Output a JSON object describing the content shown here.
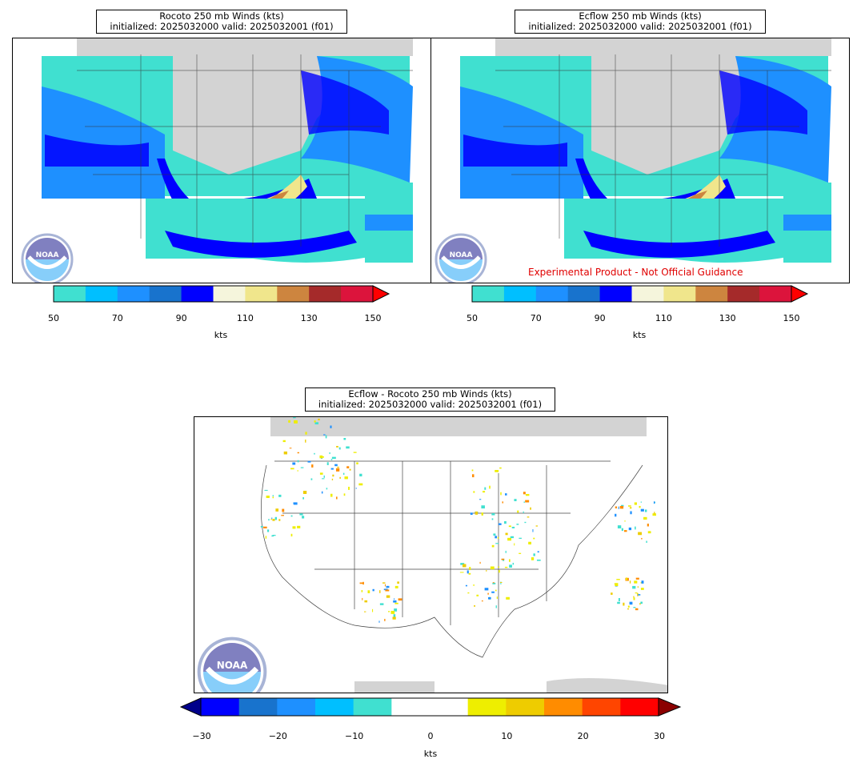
{
  "panels": [
    {
      "id": "rocoto",
      "title_line1": "Rocoto 250 mb Winds (kts)",
      "title_line2": "initialized: 2025032000 valid: 2025032001 (f01)"
    },
    {
      "id": "ecflow",
      "title_line1": "Ecflow 250 mb Winds (kts)",
      "title_line2": "initialized: 2025032000 valid: 2025032001 (f01)",
      "watermark": "Experimental Product - Not Official Guidance"
    },
    {
      "id": "diff",
      "title_line1": "Ecflow - Rocoto 250 mb Winds (kts)",
      "title_line2": "initialized: 2025032000 valid: 2025032001 (f01)"
    }
  ],
  "wind_colorbar": {
    "units": "kts",
    "ticks": [
      "50",
      "70",
      "90",
      "110",
      "130",
      "150"
    ],
    "colors": [
      "#40e0d0",
      "#00bfff",
      "#1e90ff",
      "#1873cd",
      "#0000ff",
      "#f5f5dc",
      "#f0e68c",
      "#cd853f",
      "#a52a2a",
      "#dc143c"
    ],
    "extend_color": "#ff0000"
  },
  "diff_colorbar": {
    "units": "kts",
    "ticks": [
      "−30",
      "−20",
      "−10",
      "0",
      "10",
      "20",
      "30"
    ],
    "colors": [
      "#0000ff",
      "#1873cd",
      "#1e90ff",
      "#00bfff",
      "#40e0d0",
      "#ffffff",
      "#ffffff",
      "#eeee00",
      "#eecc00",
      "#ff8c00",
      "#ff4500",
      "#ff0000"
    ],
    "extend_low_color": "#00008b",
    "extend_high_color": "#8b0000"
  },
  "logo": {
    "text": "NOAA",
    "icon": "noaa-logo-icon"
  }
}
